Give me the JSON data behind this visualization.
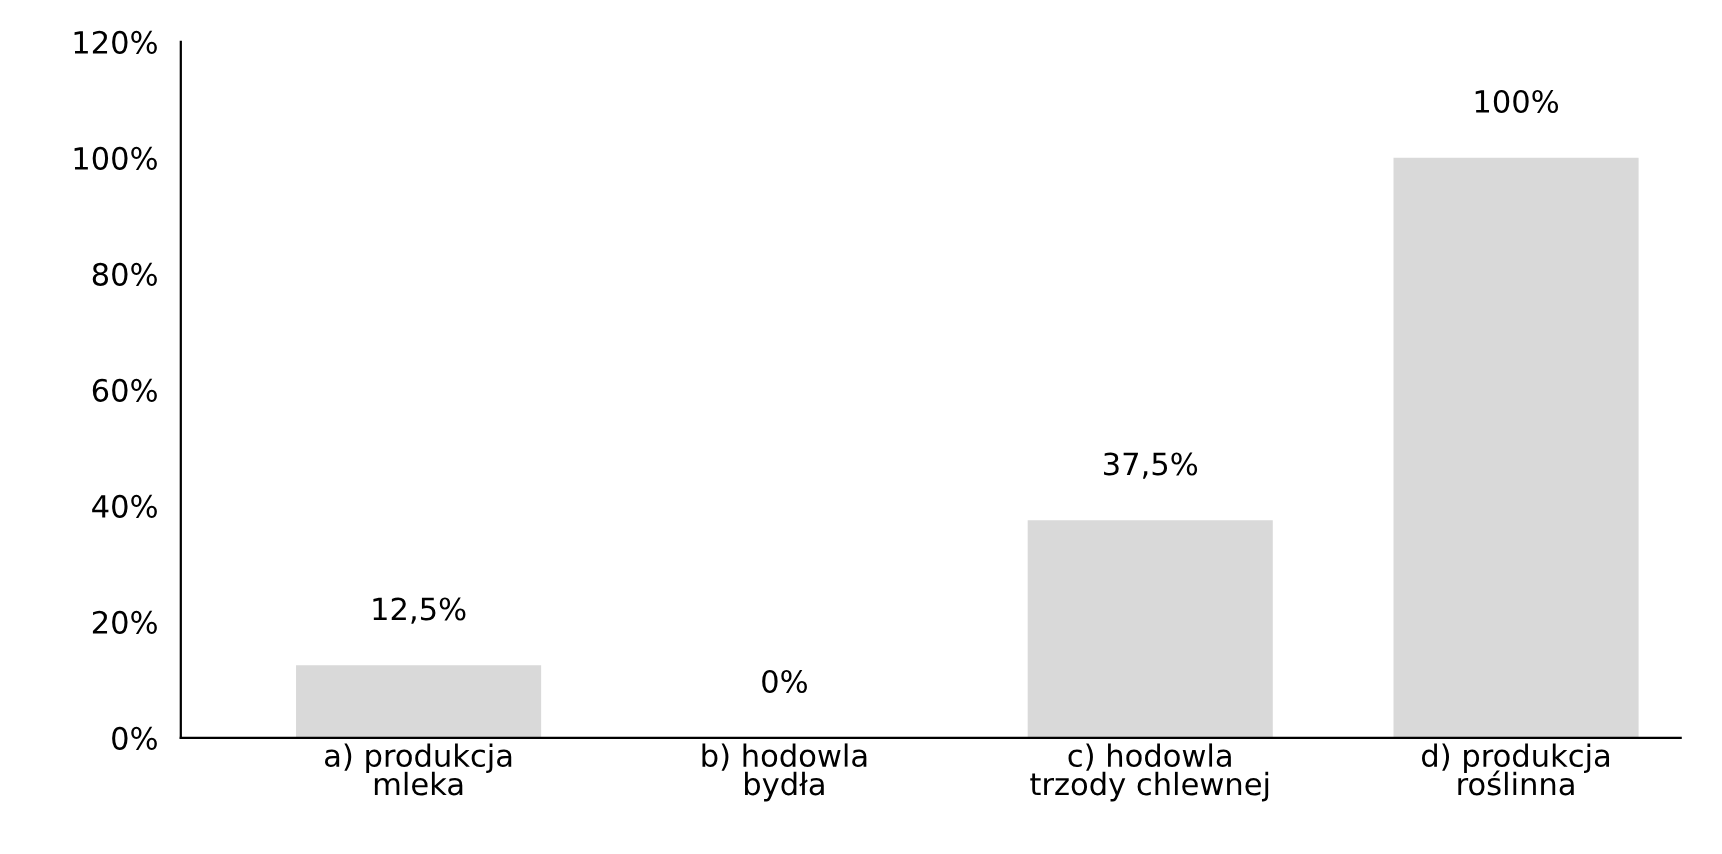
{
  "chart_data": {
    "type": "bar",
    "categories": [
      "a) produkcja\nmleka",
      "b) hodowla\nbydła",
      "c) hodowla\ntrzody chlewnej",
      "d) produkcja\nroślinna"
    ],
    "values": [
      12.5,
      0,
      37.5,
      100
    ],
    "value_labels": [
      "12,5%",
      "0%",
      "37,5%",
      "100%"
    ],
    "color": "#d9d9d9",
    "ylim": [
      0,
      120
    ],
    "yticks": [
      {
        "value": 0,
        "label": "0%"
      },
      {
        "value": 20,
        "label": "20%"
      },
      {
        "value": 40,
        "label": "40%"
      },
      {
        "value": 60,
        "label": "60%"
      },
      {
        "value": 80,
        "label": "80%"
      },
      {
        "value": 100,
        "label": "100%"
      },
      {
        "value": 120,
        "label": "120%"
      }
    ],
    "grid": false,
    "legend": false
  }
}
